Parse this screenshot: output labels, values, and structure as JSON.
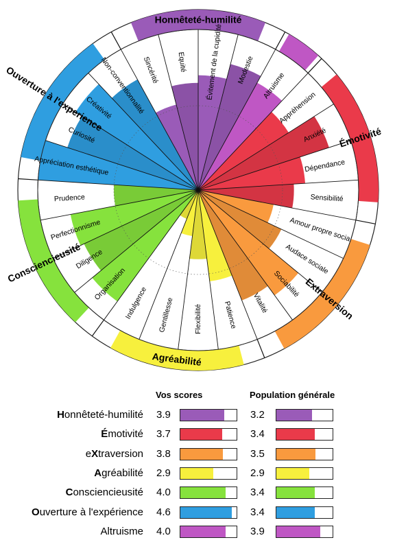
{
  "chart_data": [
    {
      "type": "polar-bar",
      "facet_scale": [
        1,
        5
      ],
      "domains": [
        {
          "name": "Honnêteté-humilité",
          "color": "#9a5bb8",
          "facets": [
            {
              "name": "Sincérité",
              "value": 3.1
            },
            {
              "name": "Equité",
              "value": 3.6
            },
            {
              "name": "Évitement de la cupidité",
              "value": 3.8
            },
            {
              "name": "Modestie",
              "value": 4.2
            }
          ]
        },
        {
          "name": "Altruisme",
          "color": "#bf57c4",
          "facets": [
            {
              "name": "Altruisme",
              "value": 4.0
            }
          ]
        },
        {
          "name": "Émotivité",
          "color": "#ea3a4a",
          "facets": [
            {
              "name": "Appréhension",
              "value": 3.6
            },
            {
              "name": "Anxiété",
              "value": 4.4
            },
            {
              "name": "Dépendance",
              "value": 3.6
            },
            {
              "name": "Sensibilité",
              "value": 3.3
            }
          ]
        },
        {
          "name": "Extraversion",
          "color": "#f99a3e",
          "facets": [
            {
              "name": "Amour propre social",
              "value": 2.8
            },
            {
              "name": "Audace sociale",
              "value": 3.2
            },
            {
              "name": "Sociabilité",
              "value": 4.2
            },
            {
              "name": "Vitalité",
              "value": 3.9
            }
          ]
        },
        {
          "name": "Agréabilité",
          "color": "#f7f03d",
          "facets": [
            {
              "name": "Patience",
              "value": 3.2
            },
            {
              "name": "Flexibilité",
              "value": 2.6
            },
            {
              "name": "Gentillesse",
              "value": 2.0
            },
            {
              "name": "Indulgence",
              "value": 1.6
            }
          ]
        },
        {
          "name": "Consciencieusité",
          "color": "#86e23d",
          "facets": [
            {
              "name": "Organisation",
              "value": 4.4
            },
            {
              "name": "Diligence",
              "value": 4.1
            },
            {
              "name": "Perfectionnisme",
              "value": 4.2
            },
            {
              "name": "Prudence",
              "value": 3.0
            }
          ]
        },
        {
          "name": "Ouverture à l'experience",
          "color": "#2f9ee0",
          "facets": [
            {
              "name": "Appréciation esthétique",
              "value": 5.0
            },
            {
              "name": "Curiosité",
              "value": 4.4
            },
            {
              "name": "Créativité",
              "value": 4.6
            },
            {
              "name": "Non-conventionnalité",
              "value": 4.1
            }
          ]
        }
      ]
    },
    {
      "type": "table",
      "columns": [
        "Vos scores",
        "Population générale"
      ],
      "max": 5,
      "rows": [
        {
          "first": "H",
          "rest": "onnêteté-humilité",
          "score": 3.9,
          "score_label": "3.9",
          "pop": 3.2,
          "pop_label": "3.2",
          "color": "#9a5bb8"
        },
        {
          "first": "É",
          "rest": "motivité",
          "score": 3.7,
          "score_label": "3.7",
          "pop": 3.4,
          "pop_label": "3.4",
          "color": "#ea3a4a"
        },
        {
          "first": "eX",
          "rest": "traversion",
          "bold_index": 1,
          "score": 3.8,
          "score_label": "3.8",
          "pop": 3.5,
          "pop_label": "3.5",
          "color": "#f99a3e"
        },
        {
          "first": "A",
          "rest": "gréabilité",
          "score": 2.9,
          "score_label": "2.9",
          "pop": 2.9,
          "pop_label": "2.9",
          "color": "#f7f03d"
        },
        {
          "first": "C",
          "rest": "onsciencieusité",
          "score": 4.0,
          "score_label": "4.0",
          "pop": 3.4,
          "pop_label": "3.4",
          "color": "#86e23d"
        },
        {
          "first": "O",
          "rest": "uverture à l'expérience",
          "score": 4.6,
          "score_label": "4.6",
          "pop": 3.4,
          "pop_label": "3.4",
          "color": "#2f9ee0"
        },
        {
          "first": "",
          "rest": "Altruisme",
          "score": 4.0,
          "score_label": "4.0",
          "pop": 3.9,
          "pop_label": "3.9",
          "color": "#bf57c4"
        }
      ]
    }
  ]
}
